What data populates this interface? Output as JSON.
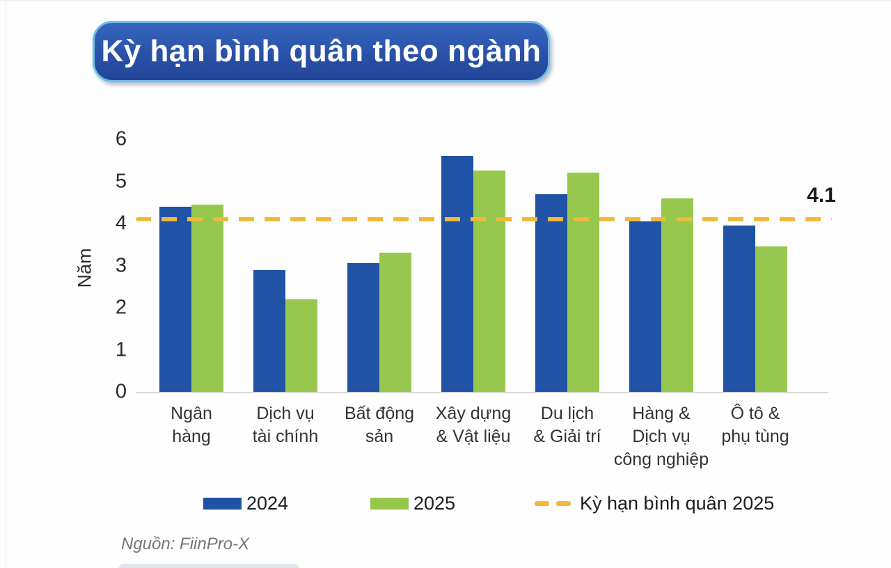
{
  "title": "Kỳ hạn bình quân theo ngành",
  "source": "Nguồn: FiinPro-X",
  "colors": {
    "bar_2024": "#2053A5",
    "bar_2025": "#96C84E",
    "reference_line": "#F0B93C",
    "badge_fill": "#2A51A7",
    "badge_border": "#6EBDE6"
  },
  "chart_data": {
    "type": "bar",
    "title": "Kỳ hạn bình quân theo ngành",
    "xlabel": "",
    "ylabel": "Năm",
    "ylim": [
      0,
      6
    ],
    "yticks": [
      0,
      1,
      2,
      3,
      4,
      5,
      6
    ],
    "grid": false,
    "legend_position": "bottom",
    "categories": [
      "Ngân hàng",
      "Dịch vụ tài chính",
      "Bất động sản",
      "Xây dựng & Vật liệu",
      "Du lịch & Giải trí",
      "Hàng & Dịch vụ công nghiệp",
      "Ô tô & phụ tùng"
    ],
    "categories_wrapped": [
      [
        "Ngân",
        "hàng"
      ],
      [
        "Dịch vụ",
        "tài chính"
      ],
      [
        "Bất động",
        "sản"
      ],
      [
        "Xây dựng",
        "& Vật liệu"
      ],
      [
        "Du lịch",
        "& Giải trí"
      ],
      [
        "Hàng &",
        "Dịch vụ",
        "công nghiệp"
      ],
      [
        "Ô tô &",
        "phụ tùng"
      ]
    ],
    "series": [
      {
        "name": "2024",
        "color": "#2053A5",
        "values": [
          4.4,
          2.9,
          3.05,
          5.6,
          4.7,
          4.05,
          3.95
        ]
      },
      {
        "name": "2025",
        "color": "#96C84E",
        "values": [
          4.45,
          2.2,
          3.3,
          5.25,
          5.2,
          4.6,
          3.45
        ]
      }
    ],
    "reference_line": {
      "value": 4.1,
      "label": "4.1",
      "legend_label": "Kỳ hạn bình quân 2025",
      "color": "#F0B93C",
      "style": "dashed"
    }
  }
}
